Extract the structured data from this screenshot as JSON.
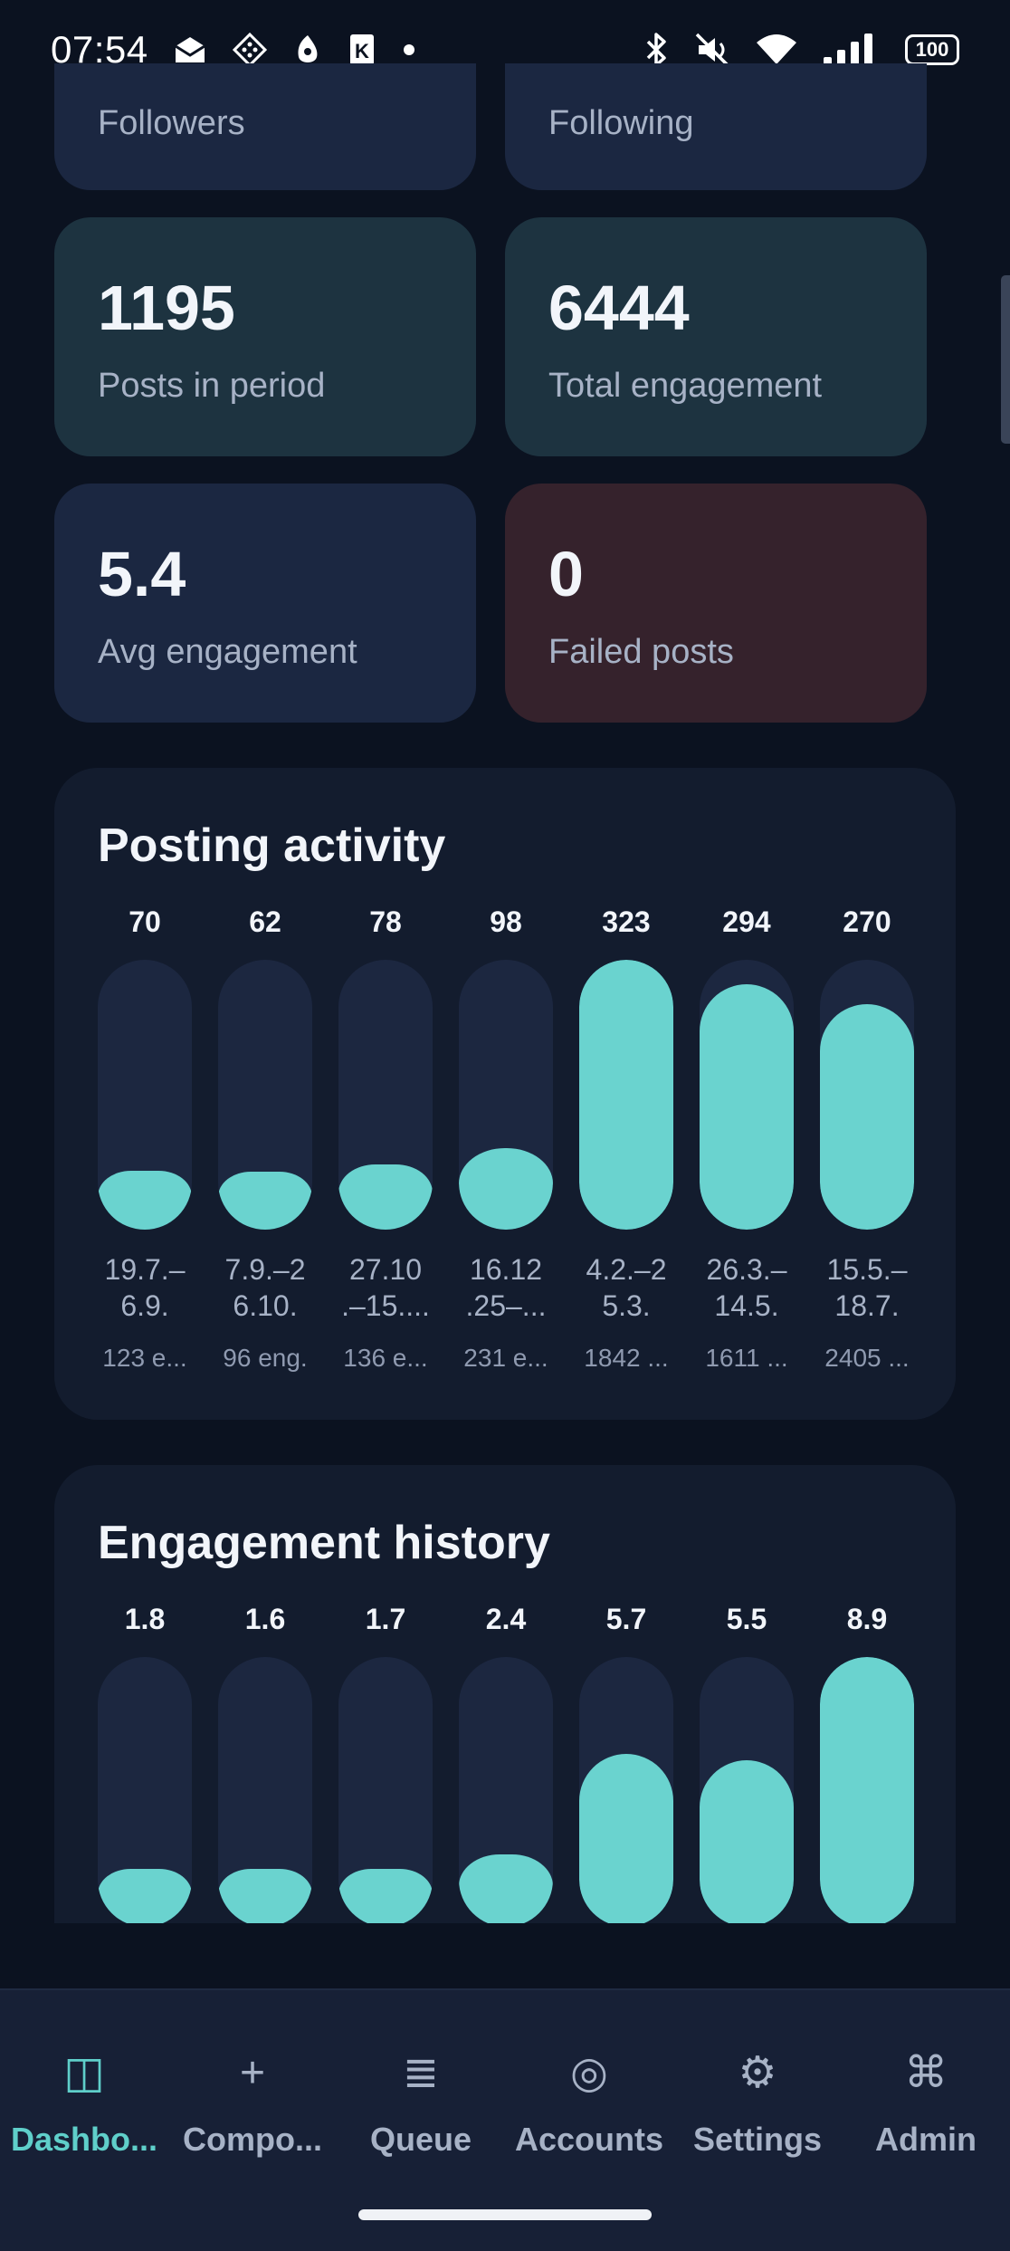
{
  "status_bar": {
    "time": "07:54",
    "battery": "100",
    "left_icons": [
      "mail-icon",
      "diamond-dots-icon",
      "fox-icon",
      "k-app-icon",
      "dot-icon"
    ],
    "right_icons": [
      "bluetooth-icon",
      "mute-icon",
      "wifi-icon",
      "signal-icon",
      "battery-icon"
    ]
  },
  "stats": {
    "followers_label": "Followers",
    "following_label": "Following",
    "posts": {
      "value": "1195",
      "label": "Posts in period"
    },
    "engagement": {
      "value": "6444",
      "label": "Total engagement"
    },
    "avg": {
      "value": "5.4",
      "label": "Avg engagement"
    },
    "failed": {
      "value": "0",
      "label": "Failed posts"
    }
  },
  "posting_activity": {
    "title": "Posting activity",
    "chart_data": {
      "type": "bar",
      "title": "Posting activity",
      "categories": [
        "19.7.–6.9.",
        "7.9.–26.10.",
        "27.10.–15....",
        "16.12.25–...",
        "4.2.–25.3.",
        "26.3.–14.5.",
        "15.5.–18.7."
      ],
      "values": [
        70,
        62,
        78,
        98,
        323,
        294,
        270
      ],
      "value_labels": [
        "70",
        "62",
        "78",
        "98",
        "323",
        "294",
        "270"
      ],
      "date_lines": [
        [
          "19.7.–",
          "6.9."
        ],
        [
          "7.9.–2",
          "6.10."
        ],
        [
          "27.10",
          ".–15...."
        ],
        [
          "16.12",
          ".25–..."
        ],
        [
          "4.2.–2",
          "5.3."
        ],
        [
          "26.3.–",
          "14.5."
        ],
        [
          "15.5.–",
          "18.7."
        ]
      ],
      "engagement_labels": [
        "123 e...",
        "96 eng.",
        "136 e...",
        "231 e...",
        "1842 ...",
        "1611 ...",
        "2405 ..."
      ],
      "ylim": [
        0,
        323
      ]
    }
  },
  "engagement_history": {
    "title": "Engagement history",
    "chart_data": {
      "type": "bar",
      "title": "Engagement history",
      "values": [
        1.8,
        1.6,
        1.7,
        2.4,
        5.7,
        5.5,
        8.9
      ],
      "value_labels": [
        "1.8",
        "1.6",
        "1.7",
        "2.4",
        "5.7",
        "5.5",
        "8.9"
      ],
      "ylim": [
        0,
        8.9
      ]
    }
  },
  "colors": {
    "background": "#0b1220",
    "accent": "#6ad3cf",
    "track": "#1c2740",
    "card_navy": "#1b2741",
    "card_teal": "#1d3340",
    "card_red": "#35222c"
  },
  "nav": {
    "items": [
      {
        "label": "Dashbo...",
        "icon": "dashboard-icon",
        "glyph": "◫",
        "active": true
      },
      {
        "label": "Compo...",
        "icon": "plus-icon",
        "glyph": "+",
        "active": false
      },
      {
        "label": "Queue",
        "icon": "list-icon",
        "glyph": "≣",
        "active": false
      },
      {
        "label": "Accounts",
        "icon": "target-icon",
        "glyph": "◎",
        "active": false
      },
      {
        "label": "Settings",
        "icon": "gear-icon",
        "glyph": "⚙",
        "active": false
      },
      {
        "label": "Admin",
        "icon": "command-icon",
        "glyph": "⌘",
        "active": false
      }
    ]
  }
}
